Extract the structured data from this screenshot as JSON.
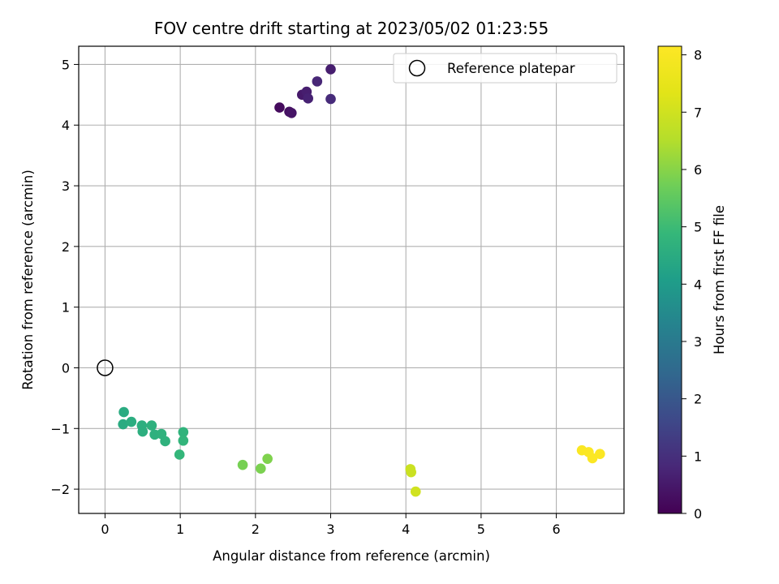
{
  "chart_data": {
    "type": "scatter",
    "title": "FOV centre drift starting at 2023/05/02 01:23:55",
    "xlabel": "Angular distance from reference (arcmin)",
    "ylabel": "Rotation from reference (arcmin)",
    "xlim": [
      -0.35,
      6.9
    ],
    "ylim": [
      -2.4,
      5.3
    ],
    "xticks": [
      0,
      1,
      2,
      3,
      4,
      5,
      6
    ],
    "yticks": [
      -2,
      -1,
      0,
      1,
      2,
      3,
      4,
      5
    ],
    "grid": true,
    "legend": {
      "position": "upper right",
      "label": "Reference platepar"
    },
    "reference": {
      "x": 0,
      "y": 0,
      "marker": "hollow-circle"
    },
    "colorbar": {
      "label": "Hours from first FF file",
      "colormap": "viridis",
      "range": [
        0,
        8.15
      ],
      "ticks": [
        0,
        1,
        2,
        3,
        4,
        5,
        6,
        7,
        8
      ]
    },
    "points": [
      {
        "x": 2.32,
        "y": 4.29,
        "hours": 0.2
      },
      {
        "x": 2.45,
        "y": 4.22,
        "hours": 0.3
      },
      {
        "x": 2.48,
        "y": 4.2,
        "hours": 0.4
      },
      {
        "x": 2.62,
        "y": 4.5,
        "hours": 0.5
      },
      {
        "x": 2.68,
        "y": 4.55,
        "hours": 0.6
      },
      {
        "x": 2.7,
        "y": 4.44,
        "hours": 0.7
      },
      {
        "x": 2.82,
        "y": 4.72,
        "hours": 0.8
      },
      {
        "x": 3.0,
        "y": 4.43,
        "hours": 0.9
      },
      {
        "x": 3.0,
        "y": 4.92,
        "hours": 0.6
      },
      {
        "x": 0.25,
        "y": -0.73,
        "hours": 4.5
      },
      {
        "x": 0.24,
        "y": -0.93,
        "hours": 4.5
      },
      {
        "x": 0.35,
        "y": -0.89,
        "hours": 4.55
      },
      {
        "x": 0.49,
        "y": -0.95,
        "hours": 4.6
      },
      {
        "x": 0.5,
        "y": -1.05,
        "hours": 4.6
      },
      {
        "x": 0.62,
        "y": -0.95,
        "hours": 4.65
      },
      {
        "x": 0.66,
        "y": -1.1,
        "hours": 4.65
      },
      {
        "x": 0.75,
        "y": -1.09,
        "hours": 4.7
      },
      {
        "x": 0.8,
        "y": -1.21,
        "hours": 4.7
      },
      {
        "x": 0.99,
        "y": -1.43,
        "hours": 4.85
      },
      {
        "x": 1.04,
        "y": -1.06,
        "hours": 4.75
      },
      {
        "x": 1.04,
        "y": -1.2,
        "hours": 4.8
      },
      {
        "x": 1.83,
        "y": -1.6,
        "hours": 5.8
      },
      {
        "x": 2.07,
        "y": -1.66,
        "hours": 5.85
      },
      {
        "x": 2.16,
        "y": -1.5,
        "hours": 5.9
      },
      {
        "x": 4.06,
        "y": -1.67,
        "hours": 6.9
      },
      {
        "x": 4.07,
        "y": -1.72,
        "hours": 6.9
      },
      {
        "x": 4.13,
        "y": -2.04,
        "hours": 7.0
      },
      {
        "x": 6.34,
        "y": -1.36,
        "hours": 8.05
      },
      {
        "x": 6.43,
        "y": -1.39,
        "hours": 8.08
      },
      {
        "x": 6.48,
        "y": -1.49,
        "hours": 8.1
      },
      {
        "x": 6.58,
        "y": -1.42,
        "hours": 8.1
      }
    ]
  }
}
